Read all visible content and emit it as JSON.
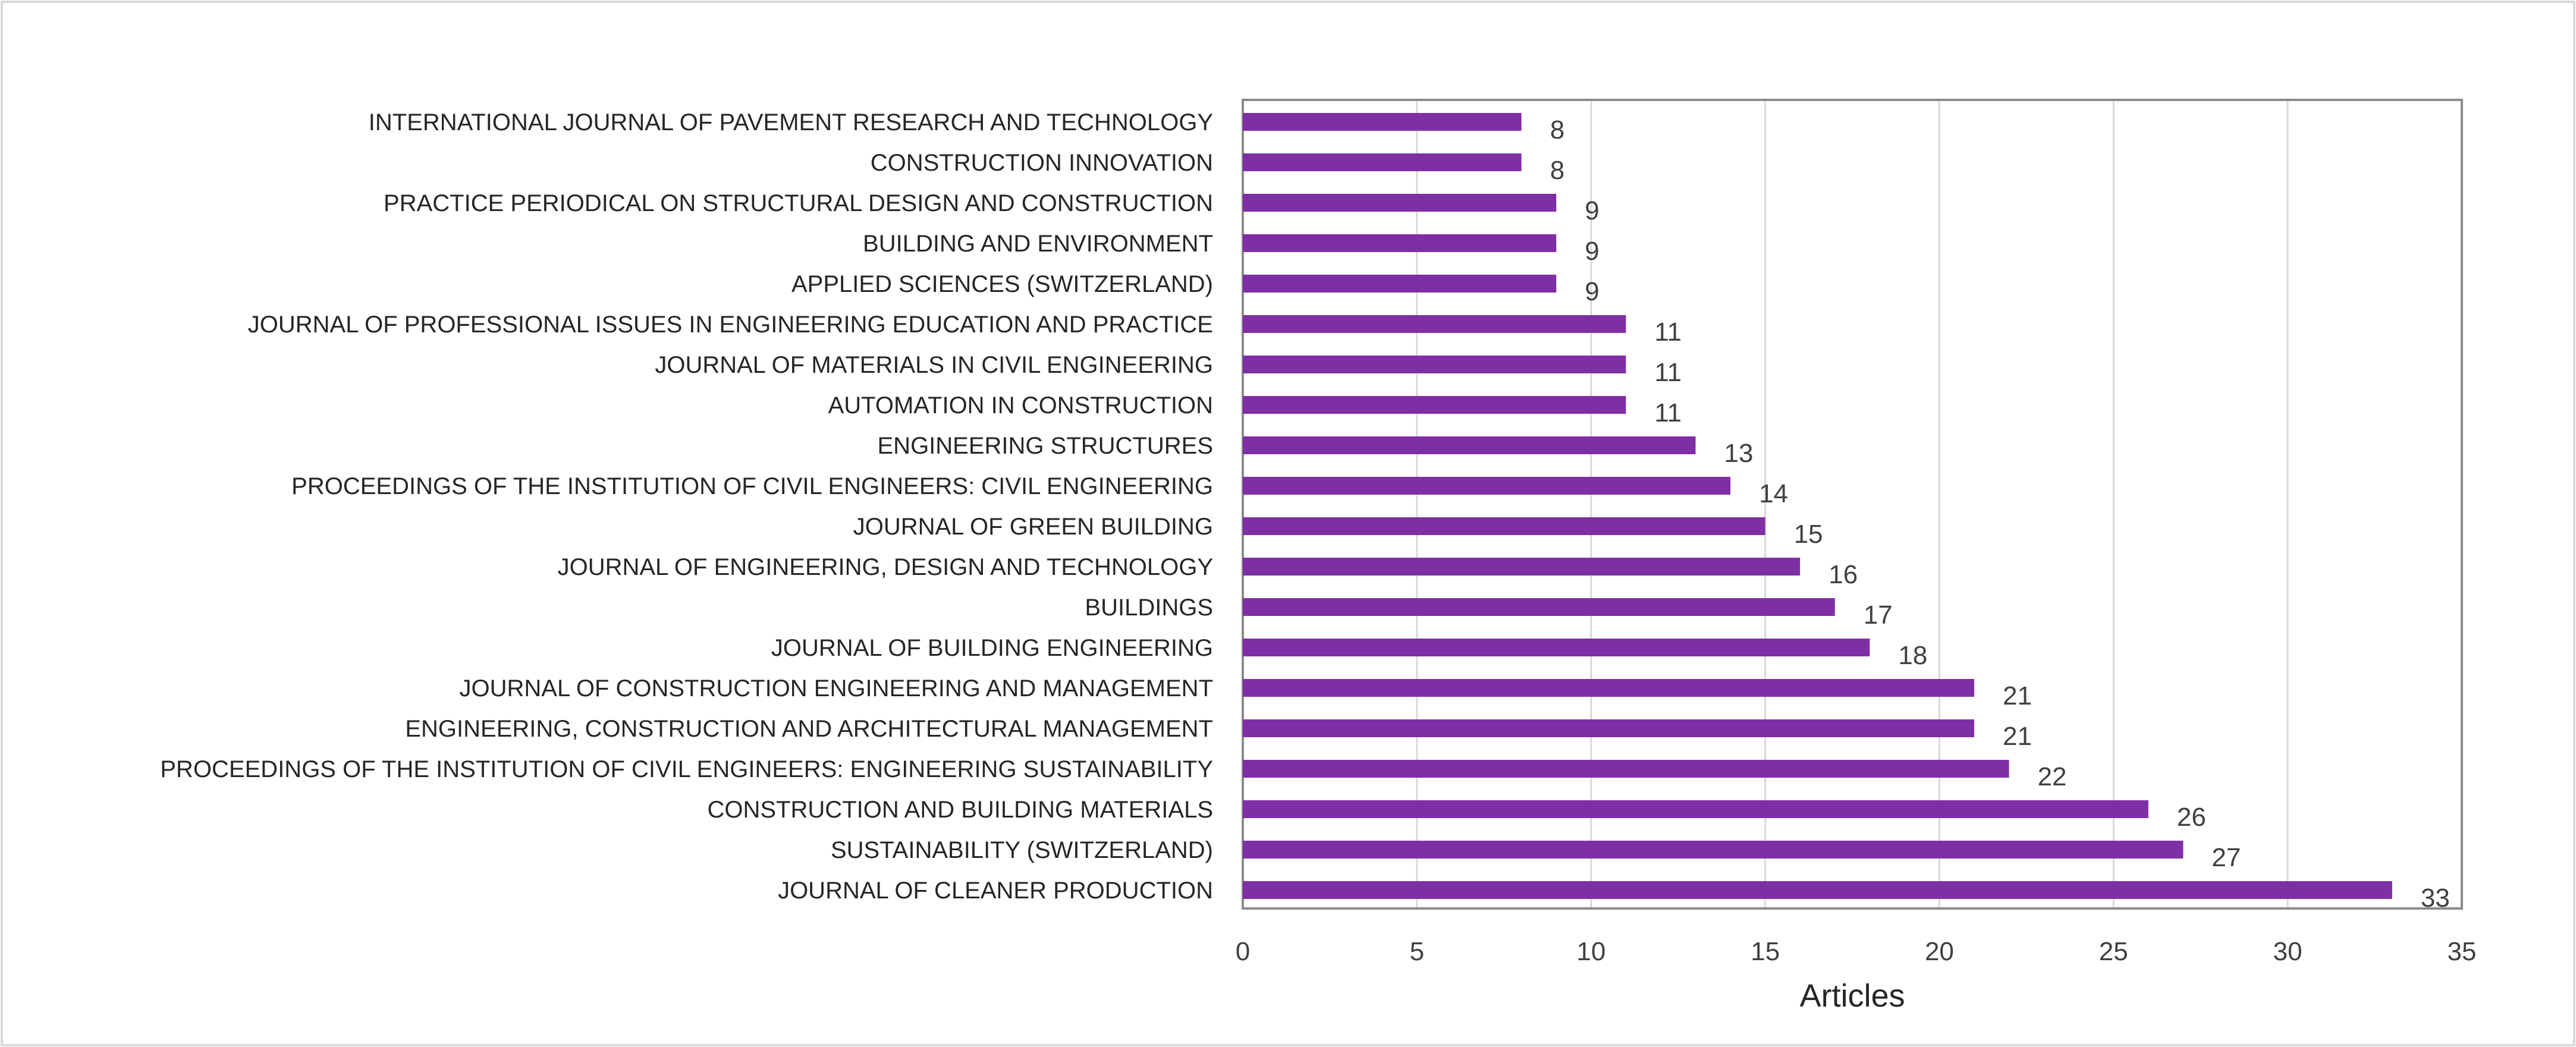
{
  "chart_data": {
    "type": "bar",
    "orientation": "horizontal",
    "title": "",
    "xlabel": "Articles",
    "ylabel": "",
    "xlim": [
      0,
      35
    ],
    "x_ticks": [
      "0",
      "5",
      "10",
      "15",
      "20",
      "25",
      "30",
      "35"
    ],
    "grid": "vertical",
    "legend": "none",
    "bar_color": "#7F2FA6",
    "categories": [
      "INTERNATIONAL JOURNAL OF PAVEMENT RESEARCH AND TECHNOLOGY",
      "CONSTRUCTION INNOVATION",
      "PRACTICE PERIODICAL ON STRUCTURAL DESIGN AND CONSTRUCTION",
      "BUILDING AND ENVIRONMENT",
      "APPLIED SCIENCES (SWITZERLAND)",
      "JOURNAL OF PROFESSIONAL ISSUES IN ENGINEERING EDUCATION AND PRACTICE",
      "JOURNAL OF MATERIALS IN CIVIL ENGINEERING",
      "AUTOMATION IN CONSTRUCTION",
      "ENGINEERING STRUCTURES",
      "PROCEEDINGS OF THE INSTITUTION OF CIVIL ENGINEERS: CIVIL ENGINEERING",
      "JOURNAL OF GREEN BUILDING",
      "JOURNAL OF ENGINEERING, DESIGN AND TECHNOLOGY",
      "BUILDINGS",
      "JOURNAL OF BUILDING ENGINEERING",
      "JOURNAL OF CONSTRUCTION ENGINEERING AND MANAGEMENT",
      "ENGINEERING, CONSTRUCTION AND ARCHITECTURAL MANAGEMENT",
      "PROCEEDINGS OF THE INSTITUTION OF CIVIL ENGINEERS: ENGINEERING SUSTAINABILITY",
      "CONSTRUCTION AND BUILDING MATERIALS",
      "SUSTAINABILITY (SWITZERLAND)",
      "JOURNAL OF CLEANER PRODUCTION"
    ],
    "values": [
      8,
      8,
      9,
      9,
      9,
      11,
      11,
      11,
      13,
      14,
      15,
      16,
      17,
      18,
      21,
      21,
      22,
      26,
      27,
      33
    ]
  }
}
